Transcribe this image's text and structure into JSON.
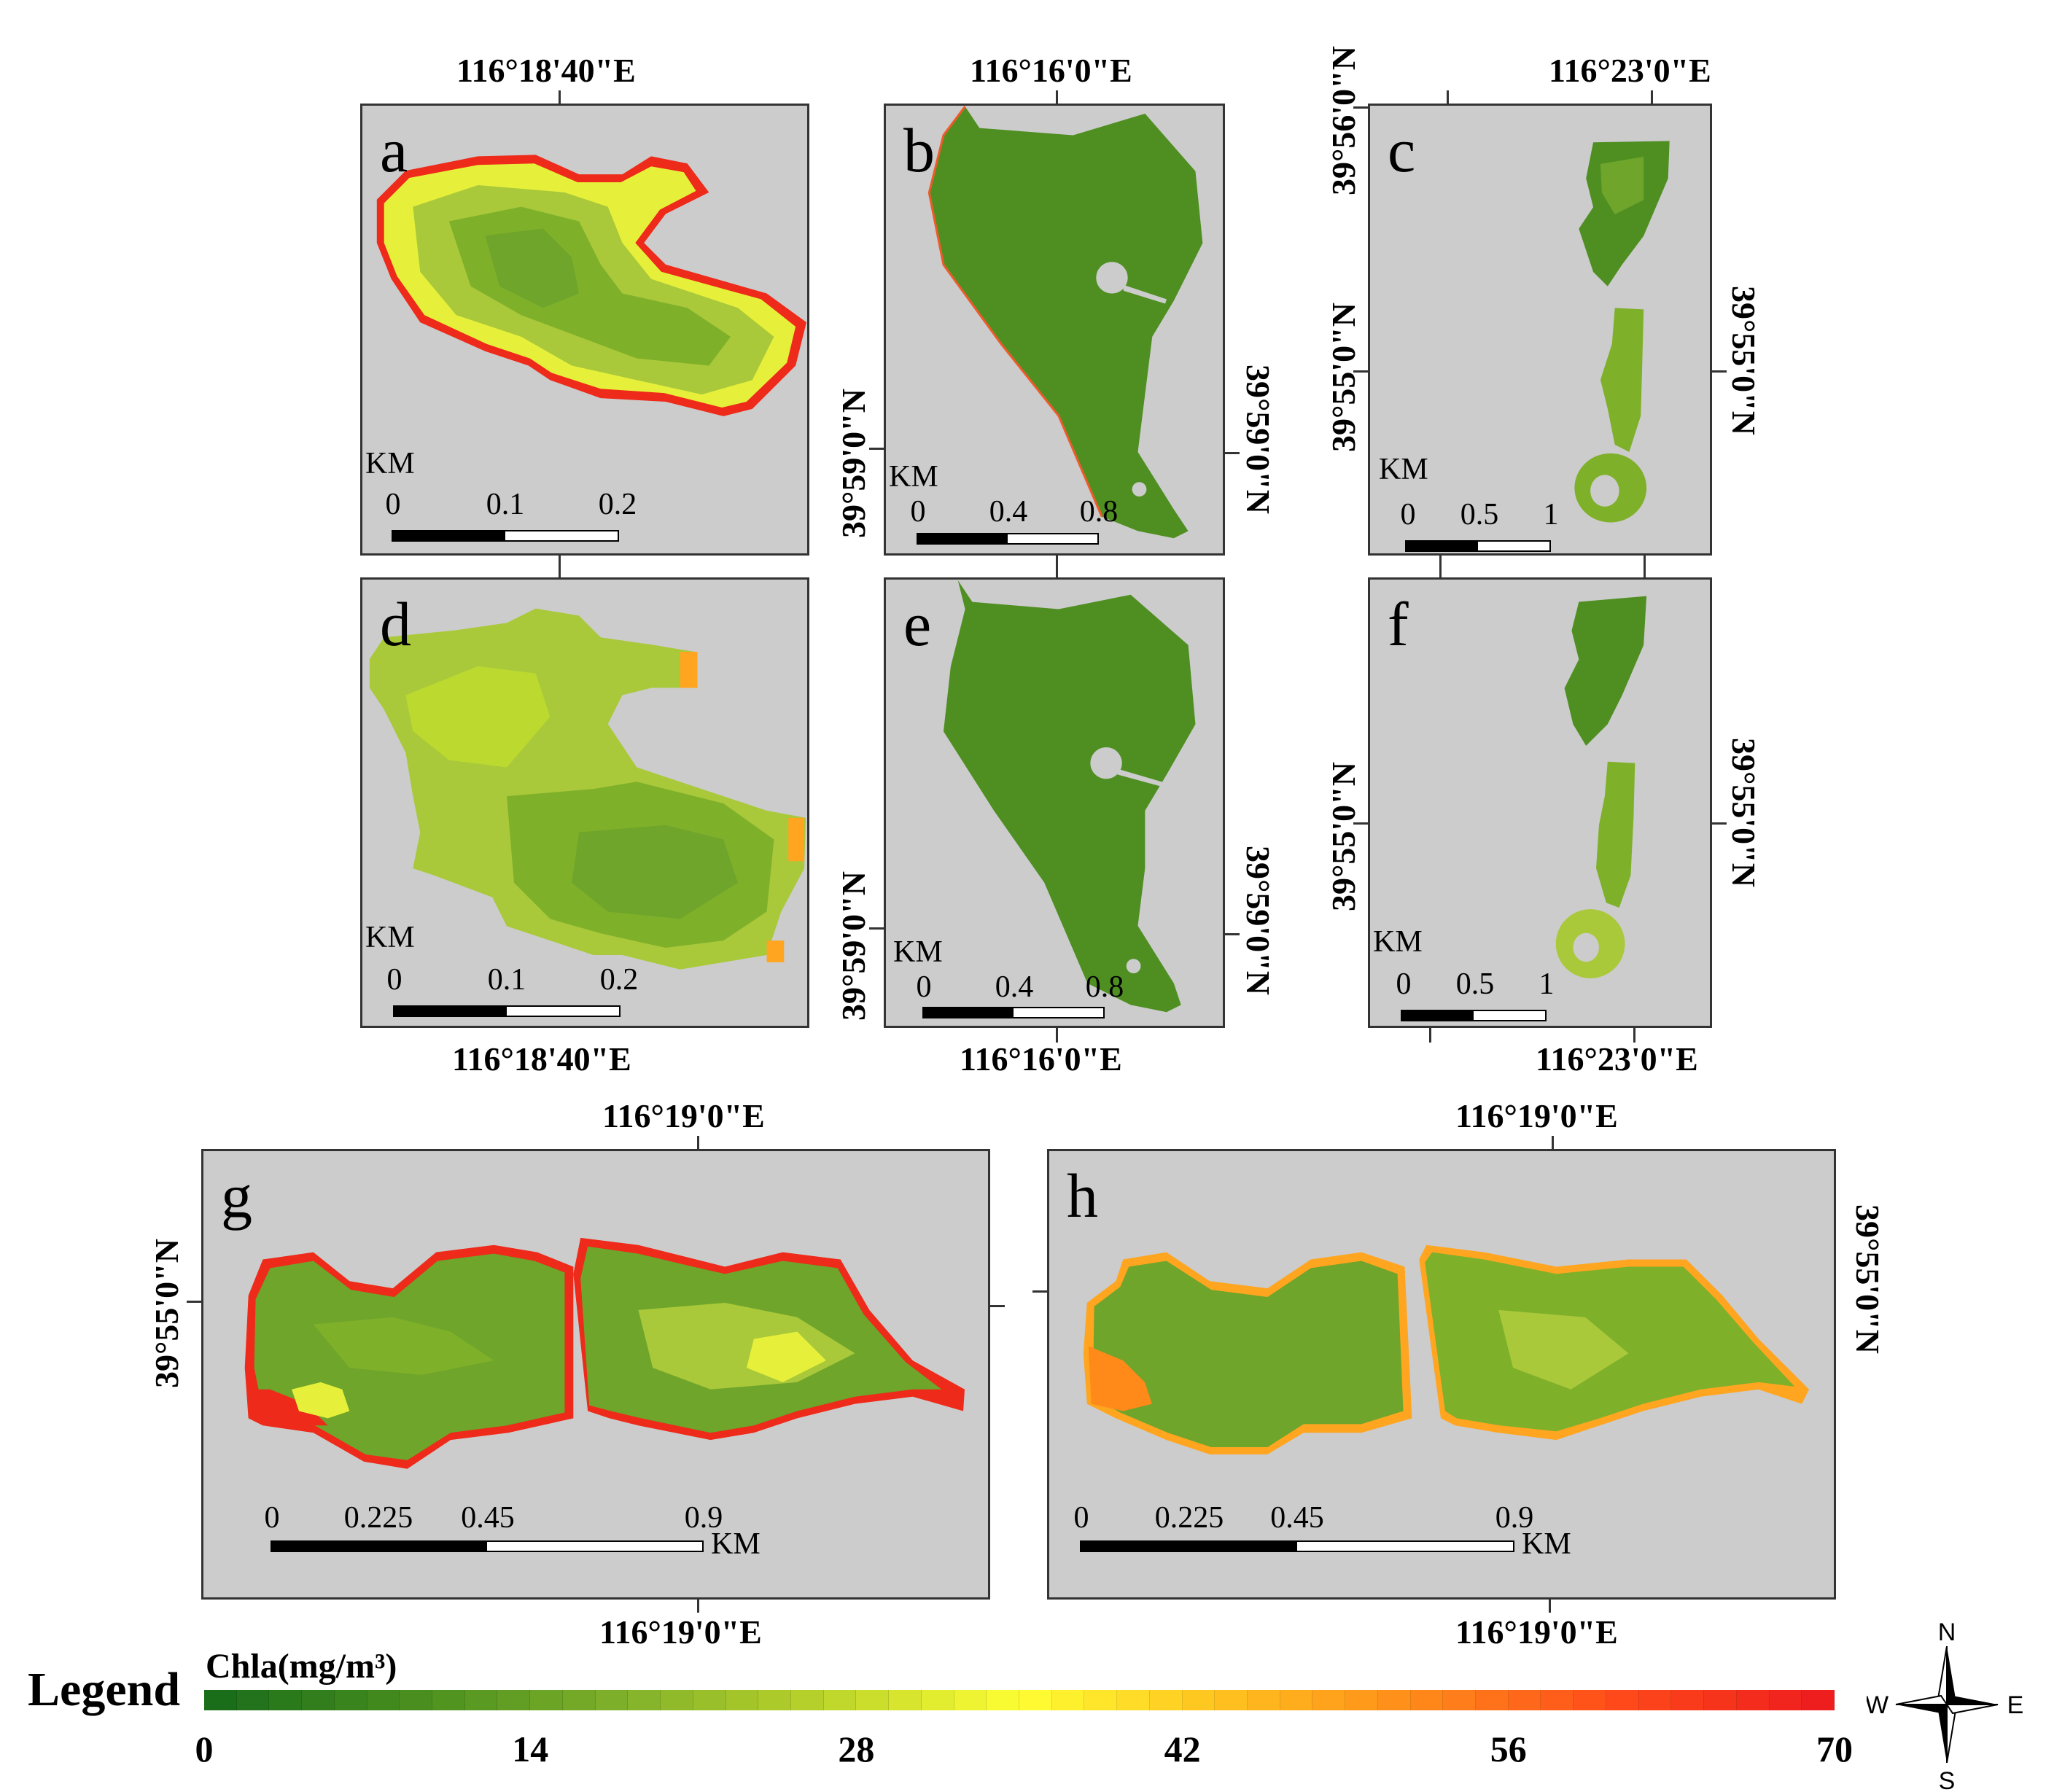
{
  "panels": {
    "a": {
      "label": "a",
      "coord_top": "116°18'40\"E",
      "scale_unit": "KM",
      "scale_ticks": [
        "0",
        "0.1",
        "0.2"
      ]
    },
    "b": {
      "label": "b",
      "coord_top": "116°16'0\"E",
      "coord_left": "39°59'0\"N",
      "coord_right": "39°59'0\"N",
      "scale_unit": "KM",
      "scale_ticks": [
        "0",
        "0.4",
        "0.8"
      ]
    },
    "c": {
      "label": "c",
      "coord_top": "116°23'0\"E",
      "coord_left": "39°56'0\"N",
      "coord_left2": "39°55'0\"N",
      "coord_right": "39°55'0\"N",
      "scale_unit": "KM",
      "scale_ticks": [
        "0",
        "0.5",
        "1"
      ]
    },
    "d": {
      "label": "d",
      "coord_bottom": "116°18'40\"E",
      "scale_unit": "KM",
      "scale_ticks": [
        "0",
        "0.1",
        "0.2"
      ]
    },
    "e": {
      "label": "e",
      "coord_bottom": "116°16'0\"E",
      "coord_left": "39°59'0\"N",
      "coord_right": "39°59'0\"N",
      "scale_unit": "KM",
      "scale_ticks": [
        "0",
        "0.4",
        "0.8"
      ]
    },
    "f": {
      "label": "f",
      "coord_bottom": "116°23'0\"E",
      "coord_left": "39°55'0\"N",
      "coord_right": "39°55'0\"N",
      "scale_unit": "KM",
      "scale_ticks": [
        "0",
        "0.5",
        "1"
      ]
    },
    "g": {
      "label": "g",
      "coord_top": "116°19'0\"E",
      "coord_bottom": "116°19'0\"E",
      "coord_left": "39°55'0\"N",
      "scale_unit": "KM",
      "scale_ticks": [
        "0",
        "0.225",
        "0.45",
        "0.9"
      ]
    },
    "h": {
      "label": "h",
      "coord_top": "116°19'0\"E",
      "coord_bottom": "116°19'0\"E",
      "coord_right": "39°55'0\"N",
      "scale_unit": "KM",
      "scale_ticks": [
        "0",
        "0.225",
        "0.45",
        "0.9"
      ]
    }
  },
  "legend": {
    "title": "Legend",
    "variable": "Chla(mg/m³)",
    "ticks": [
      "0",
      "14",
      "28",
      "42",
      "56",
      "70"
    ],
    "min": 0,
    "max": 70,
    "colors": [
      "#1a6e1a",
      "#4a8f1e",
      "#7fb02a",
      "#b9d22a",
      "#ffff33",
      "#ffc21f",
      "#ff8a1a",
      "#ff4a1a",
      "#ee1e1e"
    ]
  },
  "compass": {
    "n": "N",
    "s": "S",
    "e": "E",
    "w": "W"
  },
  "colors": {
    "panel_bg": "#cccccc",
    "water_dark": "#4f8f22",
    "water_mid": "#6ea52a",
    "water_light": "#a9c93a",
    "edge_red": "#ee2a1a",
    "edge_yellow": "#e6f03a"
  }
}
